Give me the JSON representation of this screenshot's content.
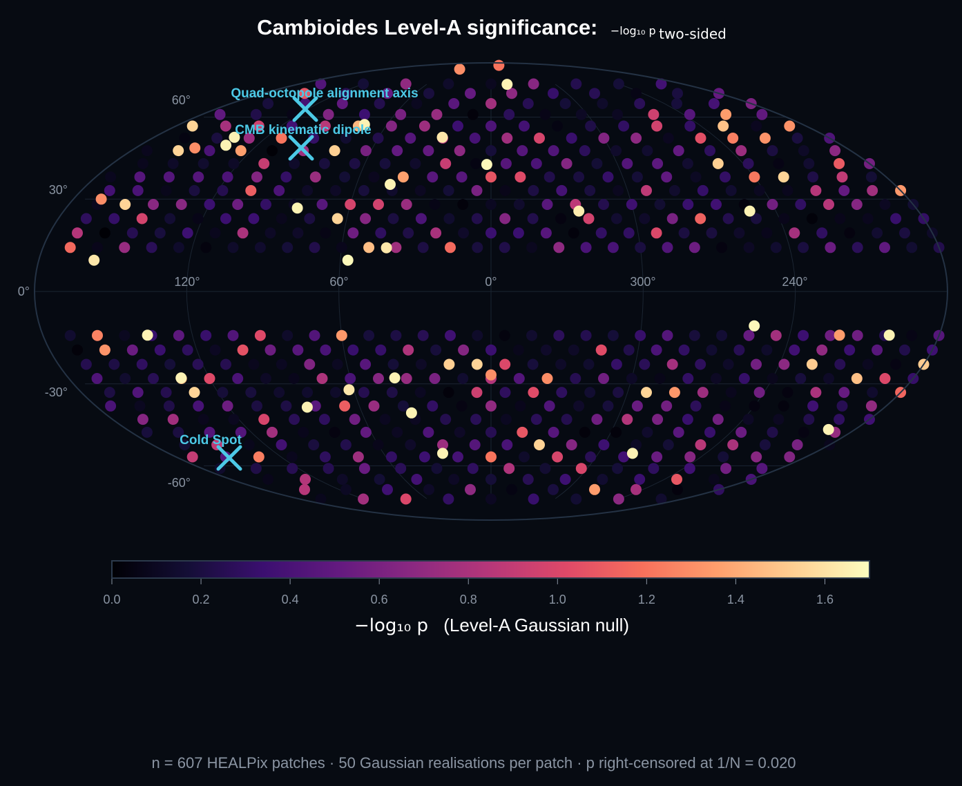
{
  "chart_data": {
    "type": "scatter",
    "projection": "mollweide",
    "title_text": "Cambioides Level-A significance:",
    "title_math": "−log₁₀ p",
    "title_subscript": "two-sided",
    "longitude_ticks": [
      "120°",
      "60°",
      "0°",
      "300°",
      "240°"
    ],
    "latitude_ticks": [
      "60°",
      "30°",
      "0°",
      "-30°",
      "-60°"
    ],
    "colormap": "magma",
    "colorbar": {
      "range": [
        0.0,
        1.7
      ],
      "ticks": [
        "0.0",
        "0.2",
        "0.4",
        "0.6",
        "0.8",
        "1.0",
        "1.2",
        "1.4",
        "1.6"
      ],
      "label_math": "−log₁₀ p",
      "label_text": "(Level-A Gaussian null)"
    },
    "n_patches": 607,
    "masked_band": "galactic plane",
    "annotations": [
      {
        "label": "Quad-octopole alignment axis",
        "lon": 60,
        "lat": 55
      },
      {
        "label": "CMB kinematic dipole",
        "lon": 69,
        "lat": 45
      },
      {
        "label": "Cold Spot",
        "lon": 152,
        "lat": -57
      }
    ],
    "highlights": [
      {
        "lon": 136,
        "lat": 49,
        "value": 1.66
      },
      {
        "lon": 73,
        "lat": 57,
        "value": 1.66
      },
      {
        "lon": 82,
        "lat": 27,
        "value": 1.66
      },
      {
        "lon": 26,
        "lat": 52,
        "value": 1.62
      },
      {
        "lon": 2,
        "lat": 42,
        "value": 1.68
      },
      {
        "lon": 45,
        "lat": 35,
        "value": 1.66
      },
      {
        "lon": 158,
        "lat": 10,
        "value": 1.62
      },
      {
        "lon": 57,
        "lat": 10,
        "value": 1.68
      },
      {
        "lon": 42,
        "lat": 14,
        "value": 1.62
      },
      {
        "lon": 323,
        "lat": 26,
        "value": 1.64
      },
      {
        "lon": 251,
        "lat": 26,
        "value": 1.66
      },
      {
        "lon": 345,
        "lat": 75,
        "value": 1.66
      },
      {
        "lon": 53,
        "lat": 84,
        "value": 1.3
      },
      {
        "lon": 339,
        "lat": 87,
        "value": 1.2
      },
      {
        "lon": 137,
        "lat": 52,
        "value": 1.66
      },
      {
        "lon": 138,
        "lat": -14,
        "value": 1.66
      },
      {
        "lon": 132,
        "lat": -28,
        "value": 1.66
      },
      {
        "lon": 41,
        "lat": -28,
        "value": 1.66
      },
      {
        "lon": 62,
        "lat": -32,
        "value": 1.62
      },
      {
        "lon": 84,
        "lat": -38,
        "value": 1.66
      },
      {
        "lon": 37,
        "lat": -40,
        "value": 1.66
      },
      {
        "lon": 27,
        "lat": -55,
        "value": 1.66
      },
      {
        "lon": 281,
        "lat": -55,
        "value": 1.66
      },
      {
        "lon": 255,
        "lat": -11,
        "value": 1.68
      },
      {
        "lon": 200,
        "lat": -14,
        "value": 1.66
      },
      {
        "lon": 193,
        "lat": -46,
        "value": 1.66
      },
      {
        "lon": 0,
        "lat": -27,
        "value": 1.3
      },
      {
        "lon": 220,
        "lat": -14,
        "value": 1.35
      },
      {
        "lon": 150,
        "lat": 48,
        "value": 1.3
      },
      {
        "lon": 168,
        "lat": 30,
        "value": 1.3
      }
    ]
  },
  "footer": {
    "text": "n = 607 HEALPix patches  ·  50 Gaussian realisations per patch  ·  p right-censored at 1/N = 0.020"
  }
}
